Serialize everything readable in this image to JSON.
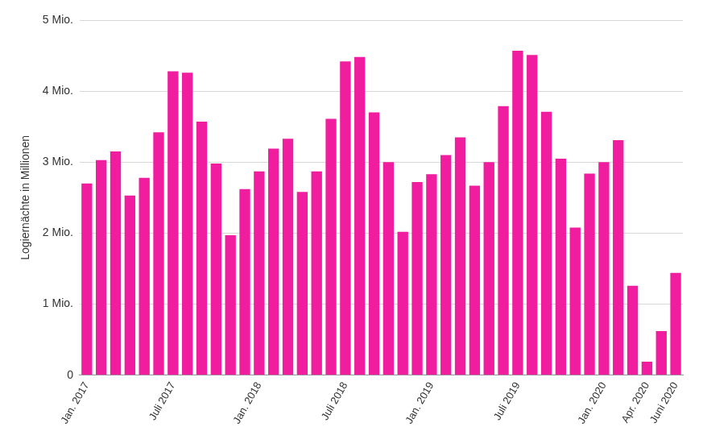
{
  "chart_data": {
    "type": "bar",
    "y_label": "Logiernächte in Millionen",
    "categories": [
      "Jan. 2017",
      null,
      null,
      null,
      null,
      null,
      "Juli 2017",
      null,
      null,
      null,
      null,
      null,
      "Jan. 2018",
      null,
      null,
      null,
      null,
      null,
      "Juli 2018",
      null,
      null,
      null,
      null,
      null,
      "Jan. 2019",
      null,
      null,
      null,
      null,
      null,
      "Juli 2019",
      null,
      null,
      null,
      null,
      null,
      "Jan. 2020",
      null,
      null,
      "Apr. 2020",
      null,
      "Juni 2020"
    ],
    "values": [
      2.7,
      3.03,
      3.15,
      2.53,
      2.78,
      3.42,
      4.28,
      4.26,
      3.57,
      2.98,
      1.97,
      2.62,
      2.87,
      3.19,
      3.33,
      2.58,
      2.87,
      3.61,
      4.42,
      4.48,
      3.7,
      3.0,
      2.02,
      2.72,
      2.83,
      3.1,
      3.35,
      2.67,
      3.0,
      3.79,
      4.57,
      4.51,
      3.71,
      3.05,
      2.08,
      2.84,
      3.0,
      3.31,
      1.26,
      0.19,
      0.62,
      1.44
    ],
    "color": "#f01e9f",
    "ylim": [
      0,
      5
    ],
    "yticks": [
      0,
      {
        "value": 1,
        "label": "1 Mio."
      },
      {
        "value": 2,
        "label": "2 Mio."
      },
      {
        "value": 3,
        "label": "3 Mio."
      },
      {
        "value": 4,
        "label": "4 Mio."
      },
      {
        "value": 5,
        "label": "5 Mio."
      }
    ],
    "grid": true
  }
}
